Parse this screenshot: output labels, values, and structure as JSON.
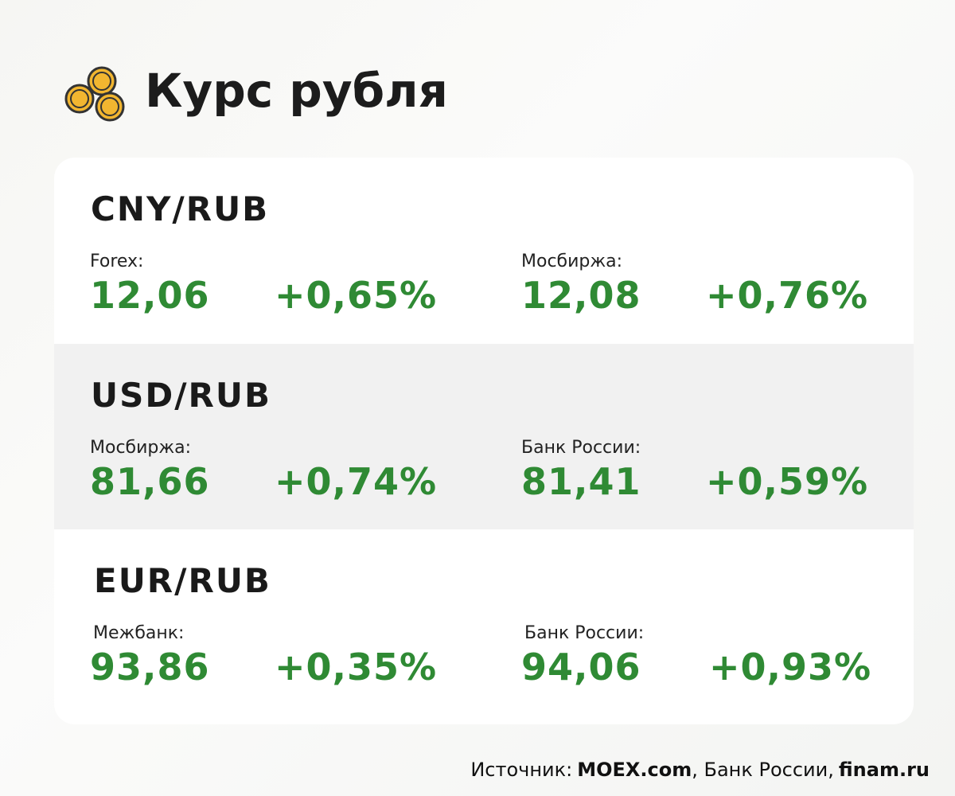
{
  "header": {
    "title": "Курс рубля"
  },
  "sections": [
    {
      "pair": "CNY/RUB",
      "quotes": [
        {
          "label": "Forex:",
          "value": "12,06",
          "change": "+0,65%"
        },
        {
          "label": "Мосбиржа:",
          "value": "12,08",
          "change": "+0,76%"
        }
      ]
    },
    {
      "pair": "USD/RUB",
      "quotes": [
        {
          "label": "Мосбиржа:",
          "value": "81,66",
          "change": "+0,74%"
        },
        {
          "label": "Банк России:",
          "value": "81,41",
          "change": "+0,59%"
        }
      ]
    },
    {
      "pair": "EUR/RUB",
      "quotes": [
        {
          "label": "Межбанк:",
          "value": "93,86",
          "change": "+0,35%"
        },
        {
          "label": "Банк России:",
          "value": "94,06",
          "change": "+0,93%"
        }
      ]
    }
  ],
  "footer": {
    "parts": [
      "Источник:",
      "MOEX.com",
      ", Банк России,",
      "finam.ru"
    ]
  }
}
